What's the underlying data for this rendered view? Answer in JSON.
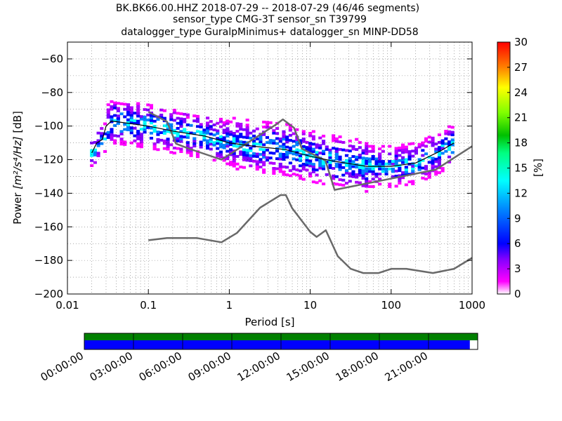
{
  "chart_data": {
    "type": "heatmap",
    "title_lines": [
      "BK.BK66.00.HHZ   2018-07-29 -- 2018-07-29  (46/46 segments)",
      "sensor_type CMG-3T sensor_sn T39799",
      "datalogger_type GuralpMinimus+ datalogger_sn MINP-DD58"
    ],
    "xlabel": "Period [s]",
    "ylabel_prefix": "Power ",
    "ylabel_units": "[m²/s⁴/Hz]",
    "ylabel_suffix": " [dB]",
    "x_scale": "log",
    "xlim": [
      0.01,
      1000
    ],
    "ylim": [
      -200,
      -50
    ],
    "xticks": [
      0.01,
      0.1,
      1,
      10,
      100,
      1000
    ],
    "xtick_labels": [
      "0.01",
      "0.1",
      "1",
      "10",
      "100",
      "1000"
    ],
    "yticks": [
      -200,
      -180,
      -160,
      -140,
      -120,
      -100,
      -80,
      -60
    ],
    "ytick_labels": [
      "−200",
      "−180",
      "−160",
      "−140",
      "−120",
      "−100",
      "−80",
      "−60"
    ],
    "grid": true,
    "colorbar": {
      "label": "[%]",
      "range": [
        0,
        30
      ],
      "ticks": [
        0,
        3,
        6,
        9,
        12,
        15,
        18,
        21,
        24,
        27,
        30
      ],
      "tick_labels": [
        "0",
        "3",
        "6",
        "9",
        "12",
        "15",
        "18",
        "21",
        "24",
        "27",
        "30"
      ]
    },
    "series": [
      {
        "role": "noise-model-high",
        "color": "#696969",
        "x": [
          0.1,
          0.17,
          0.22,
          0.32,
          0.8,
          3.8,
          4.6,
          6.3,
          7.9,
          15.4,
          20,
          354,
          1000
        ],
        "y": [
          -91.5,
          -97.4,
          -110.5,
          -113.5,
          -120,
          -99,
          -96,
          -101,
          -113.5,
          -120.5,
          -138,
          -126,
          -112
        ]
      },
      {
        "role": "noise-model-low",
        "color": "#696969",
        "x": [
          0.1,
          0.17,
          0.4,
          0.8,
          1.24,
          2.4,
          4.3,
          5,
          6,
          10,
          12,
          15.6,
          21.9,
          31.6,
          45,
          70,
          101,
          154,
          328,
          600,
          1000
        ],
        "y": [
          -168,
          -166.7,
          -166.7,
          -169.2,
          -163.7,
          -148.6,
          -141.1,
          -141.1,
          -149,
          -163,
          -166,
          -162,
          -177.5,
          -185,
          -187.5,
          -187.5,
          -185,
          -185,
          -187.5,
          -185,
          -178.5
        ]
      },
      {
        "role": "mean-psd",
        "color": "#000000",
        "x": [
          0.02,
          0.023,
          0.027,
          0.03,
          0.035,
          0.05,
          0.1,
          0.2,
          0.5,
          1,
          2,
          5,
          10,
          20,
          50,
          100,
          200,
          400,
          600
        ],
        "y": [
          -116,
          -110,
          -108,
          -100,
          -97,
          -98,
          -100,
          -103,
          -106,
          -110,
          -112,
          -114,
          -118,
          -121,
          -124,
          -124,
          -122,
          -115,
          -110
        ]
      }
    ],
    "timeline": {
      "tick_labels": [
        "00:00:00",
        "03:00:00",
        "06:00:00",
        "09:00:00",
        "12:00:00",
        "15:00:00",
        "18:00:00",
        "21:00:00"
      ],
      "data_coverage_color": "#008000",
      "psd_coverage_color": "#0000ff",
      "psd_coverage_fraction": 0.98
    }
  }
}
